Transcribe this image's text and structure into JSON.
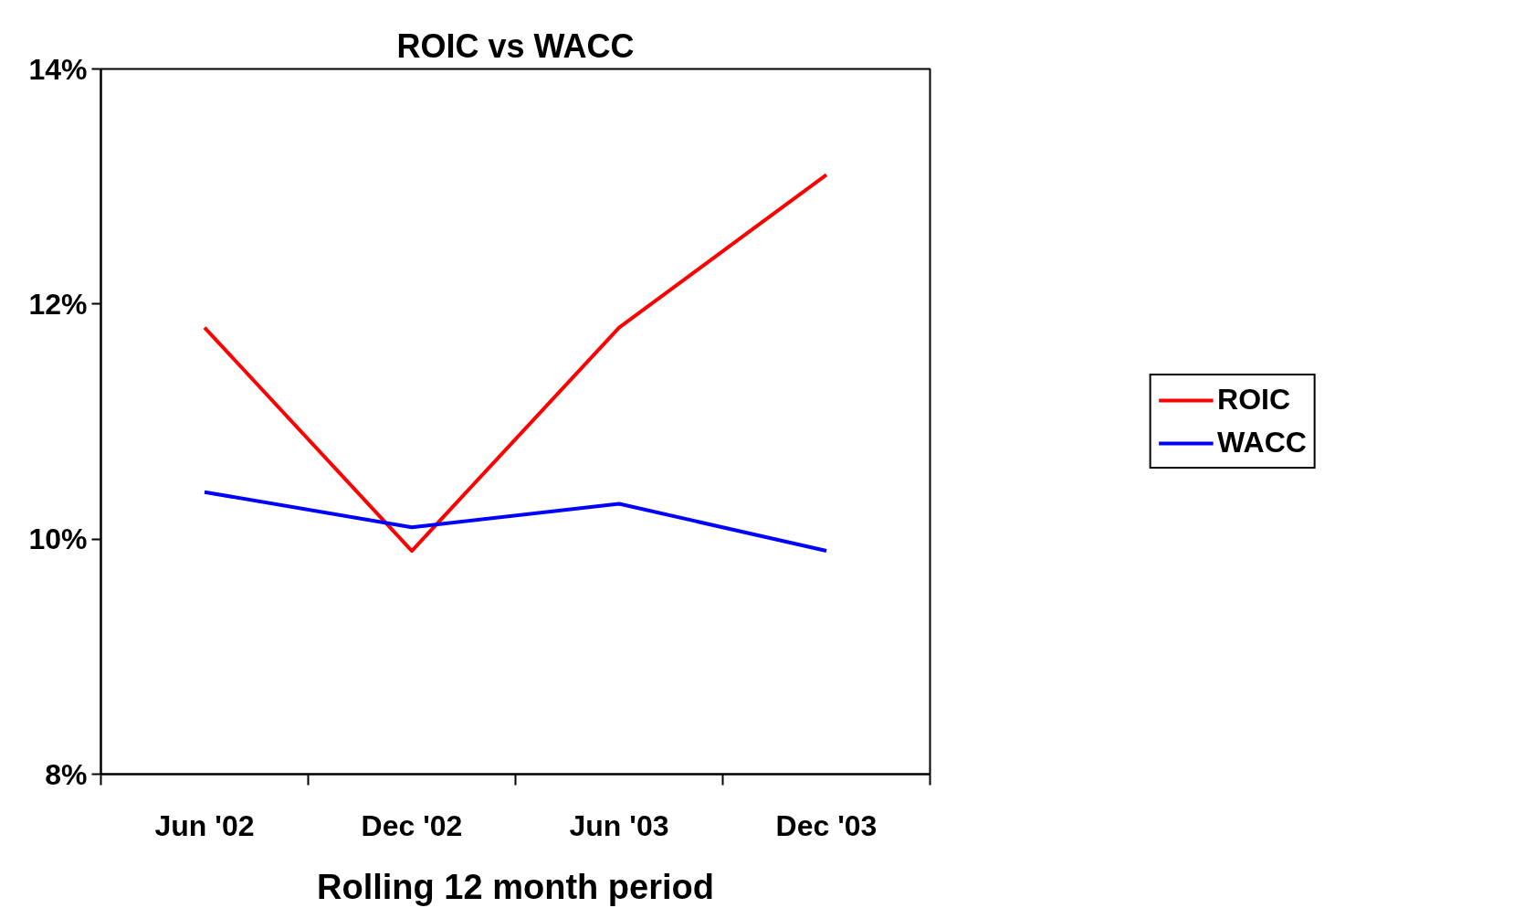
{
  "chart_data": {
    "type": "line",
    "title": "ROIC vs WACC",
    "xlabel": "Rolling 12 month period",
    "categories": [
      "Jun '02",
      "Dec '02",
      "Jun '03",
      "Dec '03"
    ],
    "series": [
      {
        "name": "ROIC",
        "color": "#ff0000",
        "values": [
          11.8,
          9.9,
          11.8,
          13.1
        ]
      },
      {
        "name": "WACC",
        "color": "#0000ff",
        "values": [
          10.4,
          10.1,
          10.3,
          9.9
        ]
      }
    ],
    "ylim": [
      8,
      14
    ],
    "yticks": [
      {
        "value": 8,
        "label": "8%"
      },
      {
        "value": 10,
        "label": "10%"
      },
      {
        "value": 12,
        "label": "12%"
      },
      {
        "value": 14,
        "label": "14%"
      }
    ],
    "grid": false,
    "legend": "right",
    "marker": "none",
    "line_style": "solid"
  }
}
